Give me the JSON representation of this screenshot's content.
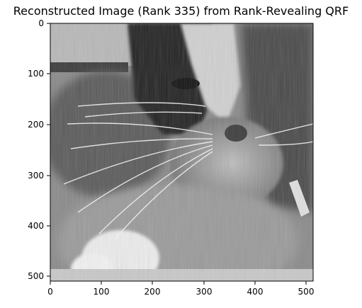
{
  "figure": {
    "title": "Reconstructed Image (Rank 335) from Rank-Revealing QRF",
    "image_description_icon": "grayscale-cat-photo",
    "x_ticks": [
      "0",
      "100",
      "200",
      "300",
      "400",
      "500"
    ],
    "y_ticks": [
      "0",
      "100",
      "200",
      "300",
      "400",
      "500"
    ],
    "x_range": [
      0,
      511
    ],
    "y_range": [
      0,
      511
    ]
  }
}
